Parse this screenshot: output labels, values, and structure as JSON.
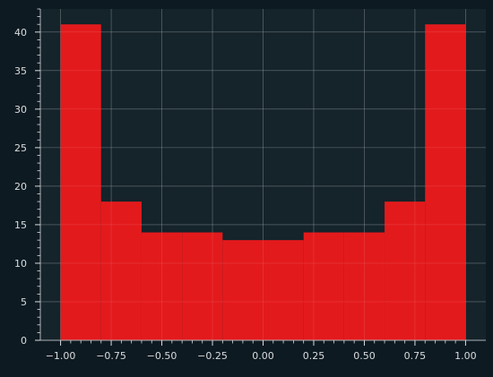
{
  "chart_data": {
    "type": "bar",
    "bins": [
      {
        "x0": -1.0,
        "x1": -0.8,
        "count": 41
      },
      {
        "x0": -0.8,
        "x1": -0.6,
        "count": 18
      },
      {
        "x0": -0.6,
        "x1": -0.4,
        "count": 14
      },
      {
        "x0": -0.4,
        "x1": -0.2,
        "count": 14
      },
      {
        "x0": -0.2,
        "x1": 0.0,
        "count": 13
      },
      {
        "x0": 0.0,
        "x1": 0.2,
        "count": 13
      },
      {
        "x0": 0.2,
        "x1": 0.4,
        "count": 14
      },
      {
        "x0": 0.4,
        "x1": 0.6,
        "count": 14
      },
      {
        "x0": 0.6,
        "x1": 0.8,
        "count": 18
      },
      {
        "x0": 0.8,
        "x1": 1.0,
        "count": 41
      }
    ],
    "xlim": [
      -1.1,
      1.1
    ],
    "ylim": [
      0,
      43
    ],
    "xticks": [
      -1.0,
      -0.75,
      -0.5,
      -0.25,
      0.0,
      0.25,
      0.5,
      0.75,
      1.0
    ],
    "xtick_labels": [
      "−1.00",
      "−0.75",
      "−0.50",
      "−0.25",
      "0.00",
      "0.25",
      "0.50",
      "0.75",
      "1.00"
    ],
    "yticks": [
      0,
      5,
      10,
      15,
      20,
      25,
      30,
      35,
      40
    ],
    "ytick_labels": [
      "0",
      "5",
      "10",
      "15",
      "20",
      "25",
      "30",
      "35",
      "40"
    ],
    "grid": true,
    "title": "",
    "xlabel": "",
    "ylabel": "",
    "colors": {
      "background": "#0d1a21",
      "plot_area": "#15232a",
      "bar": "#e31a1c",
      "grid": "#5d6b71",
      "text": "#d9dde0"
    }
  }
}
